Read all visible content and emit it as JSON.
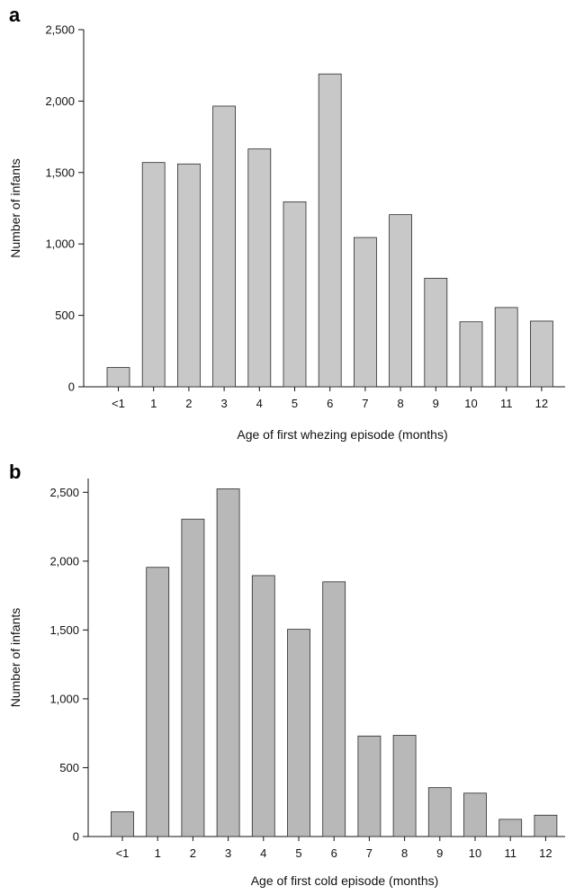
{
  "chart_data": [
    {
      "panel": "a",
      "type": "bar",
      "categories": [
        "<1",
        "1",
        "2",
        "3",
        "4",
        "5",
        "6",
        "7",
        "8",
        "9",
        "10",
        "11",
        "12"
      ],
      "values": [
        135,
        1570,
        1560,
        1965,
        1665,
        1295,
        2190,
        1045,
        1205,
        760,
        455,
        555,
        460
      ],
      "xlabel": "Age of first whezing episode (months)",
      "ylabel": "Number of infants",
      "ylim": [
        0,
        2500
      ],
      "yticks": [
        0,
        500,
        1000,
        1500,
        2000,
        2500
      ],
      "ytick_labels": [
        "0",
        "500",
        "1,000",
        "1,500",
        "2,000",
        "2,500"
      ],
      "bar_color": "#c8c8c8",
      "grid": false
    },
    {
      "panel": "b",
      "type": "bar",
      "categories": [
        "<1",
        "1",
        "2",
        "3",
        "4",
        "5",
        "6",
        "7",
        "8",
        "9",
        "10",
        "11",
        "12"
      ],
      "values": [
        180,
        1955,
        2305,
        2525,
        1895,
        1505,
        1850,
        730,
        735,
        355,
        315,
        125,
        155
      ],
      "xlabel": "Age of first cold episode (months)",
      "ylabel": "Number of infants",
      "ylim": [
        0,
        2600
      ],
      "yticks": [
        0,
        500,
        1000,
        1500,
        2000,
        2500
      ],
      "ytick_labels": [
        "0",
        "500",
        "1,000",
        "1,500",
        "2,000",
        "2,500"
      ],
      "bar_color": "#b8b8b8",
      "grid": false
    }
  ]
}
